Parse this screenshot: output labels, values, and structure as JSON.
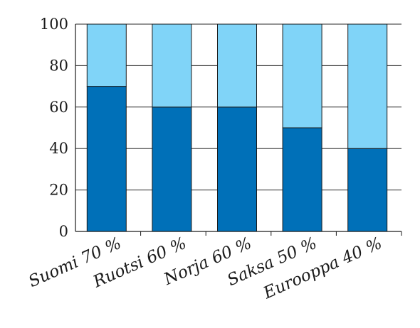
{
  "chart_data": {
    "type": "bar",
    "stacked": true,
    "categories": [
      "Suomi 70 %",
      "Ruotsi 60 %",
      "Norja 60 %",
      "Saksa 50 %",
      "Eurooppa 40 %"
    ],
    "series": [
      {
        "values": [
          70,
          60,
          60,
          50,
          40
        ],
        "color": "#0070b8"
      },
      {
        "values": [
          30,
          40,
          40,
          50,
          60
        ],
        "color": "#80d4f8"
      }
    ],
    "ylim": [
      0,
      100
    ],
    "yticks": [
      "0",
      "20",
      "40",
      "60",
      "80",
      "100"
    ],
    "grid": true
  }
}
